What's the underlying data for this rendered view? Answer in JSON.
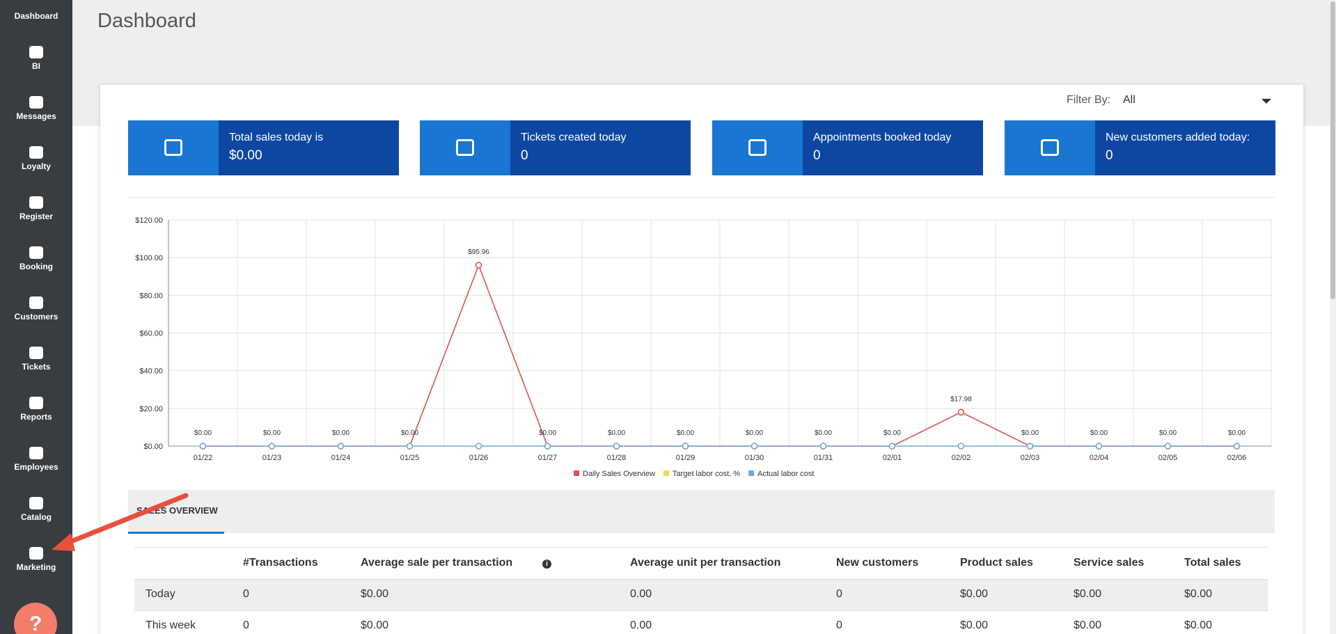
{
  "header": {
    "title": "Dashboard"
  },
  "sidebar": [
    "Dashboard",
    "BI",
    "Messages",
    "Loyalty",
    "Register",
    "Booking",
    "Customers",
    "Tickets",
    "Reports",
    "Employees",
    "Catalog",
    "Marketing"
  ],
  "help": "?",
  "filter": {
    "label": "Filter By:",
    "value": "All"
  },
  "cards": [
    {
      "label": "Total sales today is",
      "value": "$0.00"
    },
    {
      "label": "Tickets created today",
      "value": "0"
    },
    {
      "label": "Appointments booked today",
      "value": "0"
    },
    {
      "label": "New customers added today:",
      "value": "0"
    }
  ],
  "chart_data": {
    "type": "line",
    "categories": [
      "01/22",
      "01/23",
      "01/24",
      "01/25",
      "01/26",
      "01/27",
      "01/28",
      "01/29",
      "01/30",
      "01/31",
      "02/01",
      "02/02",
      "02/03",
      "02/04",
      "02/05",
      "02/06"
    ],
    "ylim": [
      0,
      120
    ],
    "yticks": [
      {
        "value": 0,
        "label": "$0.00"
      },
      {
        "value": 20,
        "label": "$20.00"
      },
      {
        "value": 40,
        "label": "$40.00"
      },
      {
        "value": 60,
        "label": "$60.00"
      },
      {
        "value": 80,
        "label": "$80.00"
      },
      {
        "value": 100,
        "label": "$100.00"
      },
      {
        "value": 120,
        "label": "$120.00"
      }
    ],
    "grid": true,
    "legend": "bottom",
    "series": [
      {
        "name": "Daily Sales Overview",
        "color": "#d9534f",
        "values": [
          0,
          0,
          0,
          0,
          95.96,
          0,
          0,
          0,
          0,
          0,
          0,
          17.98,
          0,
          0,
          0,
          0
        ],
        "value_labels": [
          "$0.00",
          "$0.00",
          "$0.00",
          "$0.00",
          "$95.96",
          "$0.00",
          "$0.00",
          "$0.00",
          "$0.00",
          "$0.00",
          "$0.00",
          "$17.98",
          "$0.00",
          "$0.00",
          "$0.00",
          "$0.00"
        ]
      },
      {
        "name": "Target labor cost, %",
        "color": "#f0d855",
        "values": [
          null,
          null,
          null,
          null,
          null,
          null,
          null,
          null,
          null,
          null,
          null,
          null,
          null,
          null,
          null,
          null
        ]
      },
      {
        "name": "Actual labor cost",
        "color": "#6fa8dc",
        "values": [
          0,
          0,
          0,
          0,
          0,
          0,
          0,
          0,
          0,
          0,
          0,
          0,
          0,
          0,
          0,
          0
        ]
      }
    ]
  },
  "tabs": [
    "SALES OVERVIEW"
  ],
  "table": {
    "columns": [
      "#Transactions",
      "Average sale per transaction",
      "Average unit per transaction",
      "New customers",
      "Product sales",
      "Service sales",
      "Total sales"
    ],
    "rows": [
      {
        "label": "Today",
        "cells": [
          "0",
          "$0.00",
          "0.00",
          "0",
          "$0.00",
          "$0.00",
          "$0.00"
        ]
      },
      {
        "label": "This week",
        "cells": [
          "0",
          "$0.00",
          "0.00",
          "0",
          "$0.00",
          "$0.00",
          "$0.00"
        ]
      }
    ]
  }
}
